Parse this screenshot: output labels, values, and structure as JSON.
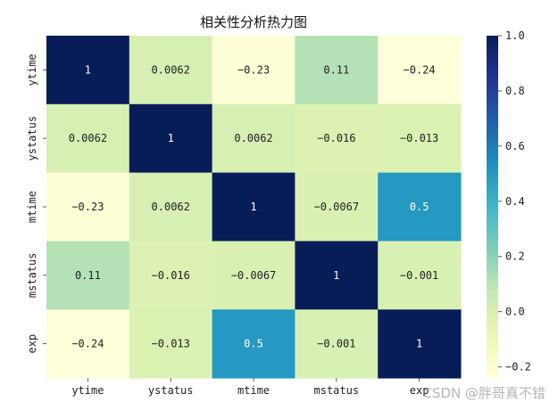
{
  "chart_data": {
    "type": "heatmap",
    "title": "相关性分析热力图",
    "x_labels": [
      "ytime",
      "ystatus",
      "mtime",
      "mstatus",
      "exp"
    ],
    "y_labels": [
      "ytime",
      "ystatus",
      "mtime",
      "mstatus",
      "exp"
    ],
    "values": [
      [
        1,
        0.0062,
        -0.23,
        0.11,
        -0.24
      ],
      [
        0.0062,
        1,
        0.0062,
        -0.016,
        -0.013
      ],
      [
        -0.23,
        0.0062,
        1,
        -0.0067,
        0.5
      ],
      [
        0.11,
        -0.016,
        -0.0067,
        1,
        -0.001
      ],
      [
        -0.24,
        -0.013,
        0.5,
        -0.001,
        1
      ]
    ],
    "annotations": [
      [
        "1",
        "0.0062",
        "−0.23",
        "0.11",
        "−0.24"
      ],
      [
        "0.0062",
        "1",
        "0.0062",
        "−0.016",
        "−0.013"
      ],
      [
        "−0.23",
        "0.0062",
        "1",
        "−0.0067",
        "0.5"
      ],
      [
        "0.11",
        "−0.016",
        "−0.0067",
        "1",
        "−0.001"
      ],
      [
        "−0.24",
        "−0.013",
        "0.5",
        "−0.001",
        "1"
      ]
    ],
    "colormap": "YlGnBu",
    "vmin": -0.24,
    "vmax": 1.0,
    "colorbar_ticks": [
      1.0,
      0.8,
      0.6,
      0.4,
      0.2,
      0.0,
      -0.2
    ],
    "colorbar_tick_labels": [
      "1.0",
      "0.8",
      "0.6",
      "0.4",
      "0.2",
      "0.0",
      "−0.2"
    ]
  },
  "watermark": "CSDN @胖哥真不错"
}
